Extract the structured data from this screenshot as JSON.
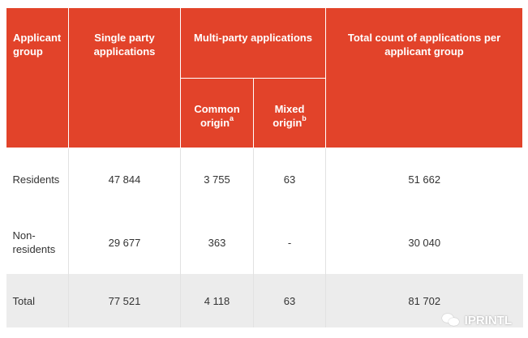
{
  "table": {
    "headers": {
      "applicant_group": "Applicant group",
      "single_party": "Single party applications",
      "multi_party": "Multi-party applications",
      "common_origin": "Common origin",
      "common_origin_note": "a",
      "mixed_origin": "Mixed origin",
      "mixed_origin_note": "b",
      "total_count": "Total count of applications per applicant group"
    },
    "rows": [
      {
        "group": "Residents",
        "single": "47 844",
        "common": "3 755",
        "mixed": "63",
        "total": "51 662"
      },
      {
        "group": "Non-residents",
        "single": "29 677",
        "common": "363",
        "mixed": "-",
        "total": "30 040"
      },
      {
        "group": "Total",
        "single": "77 521",
        "common": "4 118",
        "mixed": "63",
        "total": "81 702"
      }
    ]
  },
  "watermark": {
    "text": "IPRINTL",
    "icon": "wechat-icon"
  },
  "colors": {
    "header_bg": "#e2432a",
    "header_text": "#ffffff",
    "total_row_bg": "#ececec"
  }
}
